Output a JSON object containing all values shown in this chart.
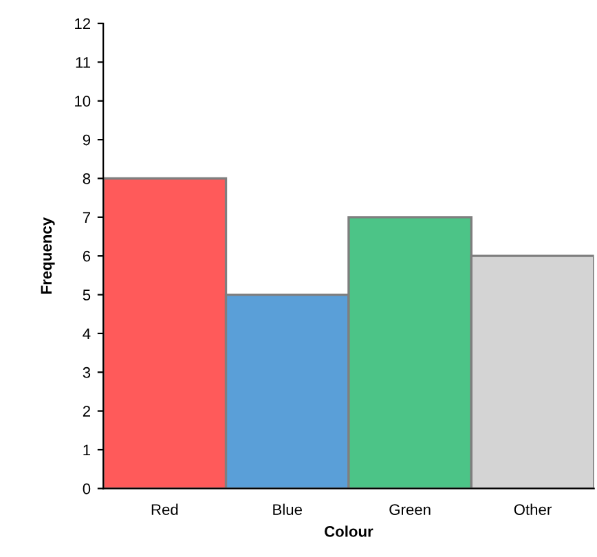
{
  "chart_data": {
    "type": "bar",
    "xlabel": "Colour",
    "ylabel": "Frequency",
    "categories": [
      "Red",
      "Blue",
      "Green",
      "Other"
    ],
    "values": [
      8,
      5,
      7,
      6
    ],
    "colors": [
      "#ff5a5a",
      "#5a9fd8",
      "#4cc487",
      "#d4d4d4"
    ],
    "ylim": [
      0,
      12
    ],
    "yticks": [
      0,
      1,
      2,
      3,
      4,
      5,
      6,
      7,
      8,
      9,
      10,
      11,
      12
    ],
    "grid": false,
    "legend": false
  }
}
